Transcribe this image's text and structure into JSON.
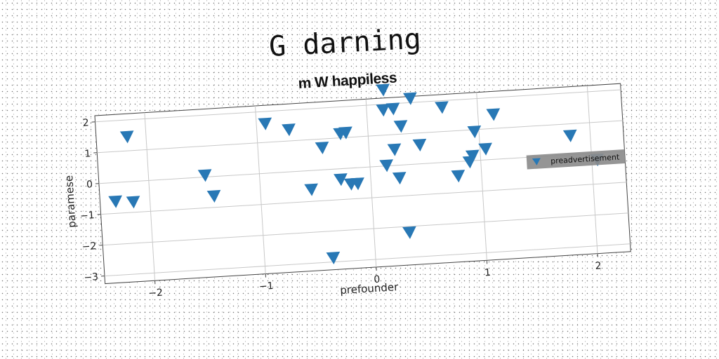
{
  "chart_data": {
    "type": "scatter",
    "title": "G darning",
    "subtitle": "m W happiless",
    "xlabel": "prefounder",
    "ylabel": "paramese",
    "xlim": [
      -2.45,
      2.3
    ],
    "ylim": [
      -3.25,
      2.2
    ],
    "xticks": [
      -2,
      -1,
      0,
      1,
      2
    ],
    "yticks": [
      -3,
      -2,
      -1,
      0,
      1,
      2
    ],
    "xtick_labels": [
      "−2",
      "−1",
      "0",
      "1",
      "2"
    ],
    "ytick_labels": [
      "−3",
      "−2",
      "−1",
      "0",
      "1",
      "2"
    ],
    "grid": true,
    "legend_position": "right",
    "marker": "triangle-down",
    "series": [
      {
        "name": "preadvertisement",
        "color": "#2878b5",
        "points": [
          [
            -2.17,
            1.47
          ],
          [
            -2.31,
            -0.6
          ],
          [
            -2.15,
            -0.65
          ],
          [
            -1.49,
            0.07
          ],
          [
            -1.42,
            -0.62
          ],
          [
            -0.92,
            1.62
          ],
          [
            -0.71,
            1.38
          ],
          [
            -0.54,
            -0.6
          ],
          [
            -0.42,
            0.73
          ],
          [
            -0.25,
            1.15
          ],
          [
            -0.2,
            1.17
          ],
          [
            -0.27,
            -0.33
          ],
          [
            -0.18,
            -0.5
          ],
          [
            -0.12,
            -0.5
          ],
          [
            -0.38,
            -2.85
          ],
          [
            0.16,
            2.48
          ],
          [
            0.15,
            1.83
          ],
          [
            0.24,
            1.85
          ],
          [
            0.4,
            2.15
          ],
          [
            0.3,
            1.27
          ],
          [
            0.23,
            0.53
          ],
          [
            0.46,
            0.63
          ],
          [
            0.15,
            0.03
          ],
          [
            0.26,
            -0.4
          ],
          [
            0.32,
            -2.18
          ],
          [
            0.68,
            1.8
          ],
          [
            0.79,
            -0.45
          ],
          [
            0.9,
            -0.02
          ],
          [
            0.93,
            0.17
          ],
          [
            0.96,
            0.95
          ],
          [
            1.05,
            0.37
          ],
          [
            1.14,
            1.47
          ],
          [
            1.82,
            0.63
          ],
          [
            2.05,
            -0.2
          ]
        ]
      }
    ]
  }
}
